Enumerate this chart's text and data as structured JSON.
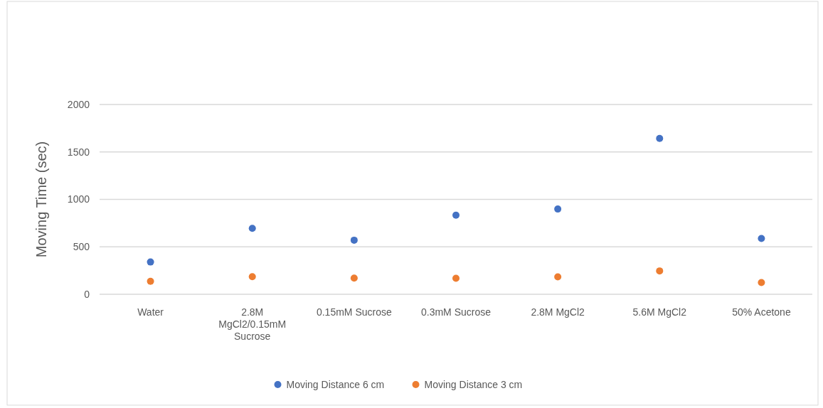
{
  "chart_data": {
    "type": "scatter",
    "ylabel": "Moving Time (sec)",
    "categories": [
      "Water",
      "2.8M MgCl2/0.15mM Sucrose",
      "0.15mM Sucrose",
      "0.3mM Sucrose",
      "2.8M MgCl2",
      "5.6M MgCl2",
      "50% Acetone"
    ],
    "series": [
      {
        "name": "Moving Distance 6 cm",
        "color": "#4472c4",
        "values": [
          340,
          695,
          570,
          834,
          898,
          1642,
          588
        ]
      },
      {
        "name": "Moving Distance 3 cm",
        "color": "#ed7d31",
        "values": [
          137,
          185,
          170,
          168,
          184,
          246,
          123
        ]
      }
    ],
    "ylim": [
      0,
      2000
    ],
    "yticks": [
      0,
      500,
      1000,
      1500,
      2000
    ],
    "grid": "y",
    "legend": "bottom",
    "marker": "circle"
  }
}
